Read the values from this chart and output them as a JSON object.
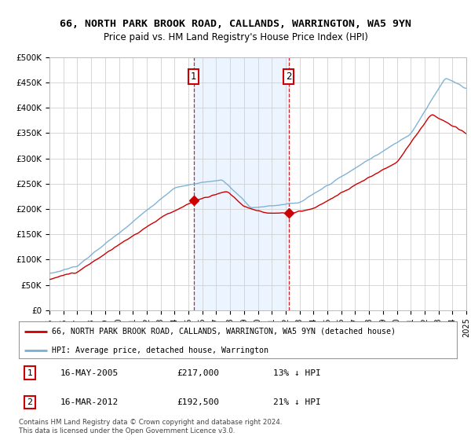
{
  "title": "66, NORTH PARK BROOK ROAD, CALLANDS, WARRINGTON, WA5 9YN",
  "subtitle": "Price paid vs. HM Land Registry's House Price Index (HPI)",
  "legend_line1": "66, NORTH PARK BROOK ROAD, CALLANDS, WARRINGTON, WA5 9YN (detached house)",
  "legend_line2": "HPI: Average price, detached house, Warrington",
  "annotation1_date": "16-MAY-2005",
  "annotation1_price": "£217,000",
  "annotation1_hpi": "13% ↓ HPI",
  "annotation2_date": "16-MAR-2012",
  "annotation2_price": "£192,500",
  "annotation2_hpi": "21% ↓ HPI",
  "marker1_year": 2005.38,
  "marker2_year": 2012.21,
  "marker1_value": 217000,
  "marker2_value": 192500,
  "ylim": [
    0,
    500000
  ],
  "xlim_start": 1995,
  "xlim_end": 2025,
  "copyright_text": "Contains HM Land Registry data © Crown copyright and database right 2024.\nThis data is licensed under the Open Government Licence v3.0.",
  "background_color": "#ffffff",
  "plot_bg_color": "#ffffff",
  "grid_color": "#d0d0d0",
  "red_line_color": "#cc0000",
  "blue_line_color": "#7aafd4",
  "shade_color": "#ddeeff",
  "marker_box_color": "#cc0000",
  "title_fontsize": 9.5,
  "subtitle_fontsize": 8.5
}
